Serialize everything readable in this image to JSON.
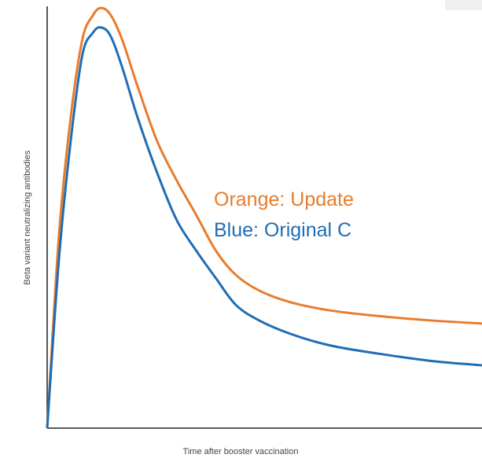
{
  "chart_data": {
    "type": "line",
    "xlabel": "Time after booster vaccination",
    "ylabel": "Beta variant neutralizing antibodies",
    "xlim": [
      0,
      100
    ],
    "ylim": [
      0,
      100
    ],
    "x": [
      0,
      2.7,
      5.4,
      8.1,
      10.5,
      12.3,
      14.5,
      17.2,
      20.8,
      25.3,
      29.8,
      34.4,
      38.9,
      43.4,
      48.8,
      56.1,
      65.1,
      75.9,
      88.6,
      100
    ],
    "series": [
      {
        "name": "Orange: Update",
        "color": "#e87c2c",
        "values": [
          0,
          45.6,
          73.6,
          92.2,
          97.8,
          99.6,
          98.1,
          92.2,
          81.0,
          68.0,
          58.7,
          50.3,
          41.9,
          36.3,
          32.6,
          29.8,
          27.9,
          26.6,
          25.5,
          24.8
        ]
      },
      {
        "name": "Blue: Original C",
        "color": "#1f6db3",
        "values": [
          0,
          40.0,
          68.0,
          88.5,
          93.7,
          95.0,
          93.1,
          85.7,
          73.6,
          60.5,
          49.3,
          41.9,
          35.4,
          29.2,
          25.5,
          22.3,
          19.6,
          17.7,
          15.9,
          14.9
        ]
      }
    ]
  }
}
